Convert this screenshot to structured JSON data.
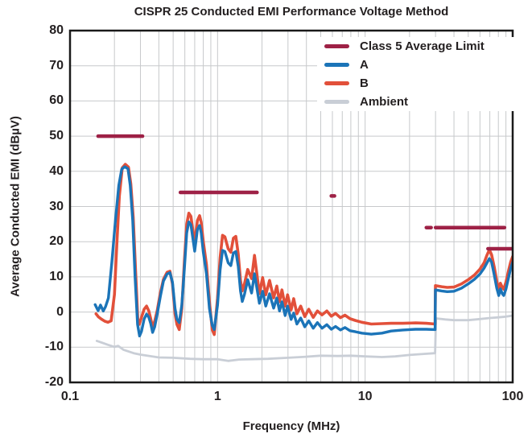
{
  "chart_data": {
    "type": "line",
    "title": "CISPR 25 Conducted EMI Performance Voltage Method",
    "xlabel": "Frequency (MHz)",
    "ylabel": "Average Conducted EMI (dBµV)",
    "x_scale": "log",
    "xlim": [
      0.1,
      100
    ],
    "ylim": [
      -20,
      80
    ],
    "x_ticks": {
      "values": [
        0.1,
        1,
        10,
        100
      ],
      "labels": [
        "0.1",
        "1",
        "10",
        "100"
      ]
    },
    "y_ticks": {
      "values": [
        80,
        70,
        60,
        50,
        40,
        30,
        20,
        10,
        0,
        -10,
        -20
      ],
      "labels": [
        "80",
        "70",
        "60",
        "50",
        "40",
        "30",
        "20",
        "10",
        "0",
        "-10",
        "-20"
      ]
    },
    "grid": {
      "on": true,
      "minor_log_x": true,
      "color": "#c7c9cb"
    },
    "frame_color": "#1a1a1a",
    "legend_position": "top-right-inside",
    "series": [
      {
        "name": "Class 5 Average Limit",
        "kind": "segments",
        "color": "#9e2146",
        "width": 4.5,
        "z": 4,
        "segments": [
          [
            0.155,
            0.31,
            50
          ],
          [
            0.56,
            1.85,
            34
          ],
          [
            5.9,
            6.2,
            33
          ],
          [
            26,
            28,
            24
          ],
          [
            30,
            88,
            24
          ],
          [
            68,
            100,
            18
          ]
        ]
      },
      {
        "name": "A",
        "kind": "line",
        "color": "#1b74b8",
        "width": 3.4,
        "z": 3,
        "points": [
          [
            0.148,
            2.1
          ],
          [
            0.155,
            0.4
          ],
          [
            0.161,
            2.0
          ],
          [
            0.168,
            0.3
          ],
          [
            0.174,
            1.5
          ],
          [
            0.182,
            4.0
          ],
          [
            0.192,
            14
          ],
          [
            0.203,
            26
          ],
          [
            0.214,
            36
          ],
          [
            0.224,
            40.6
          ],
          [
            0.235,
            41.3
          ],
          [
            0.247,
            40.7
          ],
          [
            0.256,
            36
          ],
          [
            0.266,
            26
          ],
          [
            0.276,
            10
          ],
          [
            0.287,
            -3.5
          ],
          [
            0.296,
            -6.8
          ],
          [
            0.305,
            -5.5
          ],
          [
            0.318,
            -2.0
          ],
          [
            0.33,
            -0.6
          ],
          [
            0.342,
            -1.5
          ],
          [
            0.352,
            -3.2
          ],
          [
            0.363,
            -5.8
          ],
          [
            0.375,
            -4.2
          ],
          [
            0.39,
            -0.5
          ],
          [
            0.41,
            4.5
          ],
          [
            0.43,
            8.8
          ],
          [
            0.455,
            10.8
          ],
          [
            0.475,
            11.2
          ],
          [
            0.495,
            8.5
          ],
          [
            0.515,
            1.0
          ],
          [
            0.53,
            -2.0
          ],
          [
            0.55,
            -3.0
          ],
          [
            0.572,
            2.0
          ],
          [
            0.595,
            12.0
          ],
          [
            0.618,
            22.5
          ],
          [
            0.638,
            25.6
          ],
          [
            0.66,
            24.8
          ],
          [
            0.7,
            17.3
          ],
          [
            0.73,
            23.5
          ],
          [
            0.755,
            24.6
          ],
          [
            0.775,
            22.5
          ],
          [
            0.8,
            17.0
          ],
          [
            0.84,
            10.9
          ],
          [
            0.88,
            1.0
          ],
          [
            0.92,
            -3.8
          ],
          [
            0.95,
            -5.0
          ],
          [
            1.0,
            2.0
          ],
          [
            1.04,
            12.0
          ],
          [
            1.08,
            17.5
          ],
          [
            1.12,
            17.2
          ],
          [
            1.18,
            14.0
          ],
          [
            1.23,
            13.2
          ],
          [
            1.28,
            16.8
          ],
          [
            1.33,
            17.2
          ],
          [
            1.38,
            13.0
          ],
          [
            1.43,
            6.0
          ],
          [
            1.47,
            3.0
          ],
          [
            1.52,
            5.0
          ],
          [
            1.6,
            9.2
          ],
          [
            1.7,
            5.4
          ],
          [
            1.78,
            10.9
          ],
          [
            1.92,
            2.5
          ],
          [
            2.02,
            5.9
          ],
          [
            2.12,
            1.7
          ],
          [
            2.25,
            5.2
          ],
          [
            2.4,
            1.1
          ],
          [
            2.52,
            4.0
          ],
          [
            2.63,
            0.3
          ],
          [
            2.73,
            2.9
          ],
          [
            2.87,
            -1.0
          ],
          [
            2.98,
            1.7
          ],
          [
            3.15,
            -2.1
          ],
          [
            3.28,
            -0.3
          ],
          [
            3.45,
            -3.4
          ],
          [
            3.66,
            -1.7
          ],
          [
            3.9,
            -4.2
          ],
          [
            4.15,
            -2.5
          ],
          [
            4.45,
            -4.6
          ],
          [
            4.75,
            -3.0
          ],
          [
            5.1,
            -4.6
          ],
          [
            5.5,
            -3.6
          ],
          [
            5.9,
            -4.9
          ],
          [
            6.3,
            -4.1
          ],
          [
            6.8,
            -5.1
          ],
          [
            7.3,
            -4.4
          ],
          [
            7.9,
            -5.3
          ],
          [
            8.6,
            -5.6
          ],
          [
            9.5,
            -6.0
          ],
          [
            11,
            -6.3
          ],
          [
            13,
            -6.0
          ],
          [
            15,
            -5.4
          ],
          [
            18,
            -5.1
          ],
          [
            22,
            -4.9
          ],
          [
            26,
            -4.9
          ],
          [
            29.8,
            -5.0
          ],
          [
            29.95,
            6.3
          ],
          [
            33,
            6.0
          ],
          [
            36,
            5.8
          ],
          [
            40,
            5.9
          ],
          [
            45,
            6.8
          ],
          [
            50,
            8.0
          ],
          [
            55,
            9.3
          ],
          [
            60,
            10.8
          ],
          [
            64,
            12.5
          ],
          [
            67,
            14.0
          ],
          [
            69.5,
            15.2
          ],
          [
            72,
            14.2
          ],
          [
            75,
            10.5
          ],
          [
            78,
            6.8
          ],
          [
            80.5,
            4.7
          ],
          [
            82.5,
            6.6
          ],
          [
            85,
            5.2
          ],
          [
            87,
            4.7
          ],
          [
            90,
            6.5
          ],
          [
            94,
            10.0
          ],
          [
            97,
            12.5
          ],
          [
            100,
            14.2
          ]
        ]
      },
      {
        "name": "B",
        "kind": "line",
        "color": "#e2503a",
        "width": 3.6,
        "z": 2,
        "points": [
          [
            0.15,
            -0.5
          ],
          [
            0.156,
            -1.4
          ],
          [
            0.163,
            -2.0
          ],
          [
            0.172,
            -2.6
          ],
          [
            0.181,
            -2.9
          ],
          [
            0.19,
            -2.5
          ],
          [
            0.2,
            5
          ],
          [
            0.208,
            20
          ],
          [
            0.216,
            33
          ],
          [
            0.226,
            41.0
          ],
          [
            0.237,
            42.0
          ],
          [
            0.249,
            41.2
          ],
          [
            0.258,
            36.5
          ],
          [
            0.268,
            27
          ],
          [
            0.278,
            12
          ],
          [
            0.288,
            -2.0
          ],
          [
            0.295,
            -3.5
          ],
          [
            0.305,
            -1.5
          ],
          [
            0.318,
            0.8
          ],
          [
            0.33,
            1.7
          ],
          [
            0.342,
            0.3
          ],
          [
            0.352,
            -1.8
          ],
          [
            0.363,
            -4.4
          ],
          [
            0.375,
            -2.6
          ],
          [
            0.39,
            0.5
          ],
          [
            0.41,
            5.5
          ],
          [
            0.43,
            9.3
          ],
          [
            0.455,
            11.3
          ],
          [
            0.475,
            11.6
          ],
          [
            0.495,
            8.0
          ],
          [
            0.515,
            -0.5
          ],
          [
            0.53,
            -3.5
          ],
          [
            0.55,
            -5.0
          ],
          [
            0.572,
            1.0
          ],
          [
            0.595,
            14.0
          ],
          [
            0.618,
            25.0
          ],
          [
            0.638,
            28.1
          ],
          [
            0.66,
            27.2
          ],
          [
            0.7,
            19.5
          ],
          [
            0.73,
            26.0
          ],
          [
            0.755,
            27.4
          ],
          [
            0.775,
            25.5
          ],
          [
            0.8,
            20.0
          ],
          [
            0.84,
            13.5
          ],
          [
            0.88,
            3.0
          ],
          [
            0.92,
            -5.0
          ],
          [
            0.95,
            -6.4
          ],
          [
            1.0,
            4.0
          ],
          [
            1.04,
            15.5
          ],
          [
            1.08,
            21.8
          ],
          [
            1.12,
            21.4
          ],
          [
            1.18,
            18.0
          ],
          [
            1.23,
            17.0
          ],
          [
            1.28,
            21.0
          ],
          [
            1.33,
            21.5
          ],
          [
            1.38,
            16.5
          ],
          [
            1.43,
            9.0
          ],
          [
            1.47,
            6.0
          ],
          [
            1.52,
            8.0
          ],
          [
            1.6,
            12.1
          ],
          [
            1.7,
            9.5
          ],
          [
            1.78,
            16.1
          ],
          [
            1.92,
            5.2
          ],
          [
            2.02,
            9.8
          ],
          [
            2.12,
            4.9
          ],
          [
            2.25,
            9.0
          ],
          [
            2.4,
            4.0
          ],
          [
            2.52,
            7.4
          ],
          [
            2.63,
            2.9
          ],
          [
            2.73,
            6.3
          ],
          [
            2.87,
            1.7
          ],
          [
            2.98,
            4.9
          ],
          [
            3.15,
            0.6
          ],
          [
            3.28,
            3.8
          ],
          [
            3.45,
            -0.5
          ],
          [
            3.66,
            1.7
          ],
          [
            3.9,
            -1.3
          ],
          [
            4.15,
            0.8
          ],
          [
            4.45,
            -1.5
          ],
          [
            4.75,
            0.3
          ],
          [
            5.1,
            -0.8
          ],
          [
            5.5,
            0.3
          ],
          [
            5.9,
            -1.2
          ],
          [
            6.3,
            -0.4
          ],
          [
            6.8,
            -1.6
          ],
          [
            7.3,
            -0.9
          ],
          [
            7.9,
            -1.9
          ],
          [
            8.6,
            -2.4
          ],
          [
            9.5,
            -2.9
          ],
          [
            11,
            -3.4
          ],
          [
            13,
            -3.3
          ],
          [
            15,
            -3.2
          ],
          [
            18,
            -3.2
          ],
          [
            22,
            -3.1
          ],
          [
            26,
            -3.2
          ],
          [
            29.8,
            -3.4
          ],
          [
            29.95,
            7.5
          ],
          [
            33,
            7.2
          ],
          [
            36,
            7.0
          ],
          [
            40,
            7.1
          ],
          [
            45,
            8.0
          ],
          [
            50,
            9.2
          ],
          [
            55,
            10.5
          ],
          [
            60,
            12.2
          ],
          [
            64,
            14.0
          ],
          [
            67,
            16.2
          ],
          [
            69.5,
            17.7
          ],
          [
            72,
            16.3
          ],
          [
            75,
            12.8
          ],
          [
            78,
            8.8
          ],
          [
            80.5,
            6.3
          ],
          [
            82.5,
            8.2
          ],
          [
            85,
            7.0
          ],
          [
            87,
            6.5
          ],
          [
            90,
            8.5
          ],
          [
            94,
            12.0
          ],
          [
            97,
            14.3
          ],
          [
            100,
            15.8
          ]
        ]
      },
      {
        "name": "Ambient",
        "kind": "line",
        "color": "#c9ced6",
        "width": 2.8,
        "z": 1,
        "points": [
          [
            0.152,
            -8.2
          ],
          [
            0.18,
            -9.3
          ],
          [
            0.2,
            -9.9
          ],
          [
            0.212,
            -9.6
          ],
          [
            0.23,
            -10.7
          ],
          [
            0.27,
            -11.7
          ],
          [
            0.3,
            -12.1
          ],
          [
            0.4,
            -12.9
          ],
          [
            0.5,
            -13.0
          ],
          [
            0.65,
            -13.3
          ],
          [
            0.8,
            -13.4
          ],
          [
            1.0,
            -13.4
          ],
          [
            1.18,
            -13.9
          ],
          [
            1.4,
            -13.5
          ],
          [
            1.7,
            -13.4
          ],
          [
            2.2,
            -13.3
          ],
          [
            3.0,
            -13.0
          ],
          [
            4.0,
            -12.7
          ],
          [
            5.0,
            -12.4
          ],
          [
            6.5,
            -12.5
          ],
          [
            8.0,
            -12.4
          ],
          [
            10,
            -12.6
          ],
          [
            13,
            -12.8
          ],
          [
            16,
            -12.6
          ],
          [
            20,
            -12.2
          ],
          [
            25,
            -11.9
          ],
          [
            29.8,
            -11.7
          ],
          [
            30.2,
            -1.8
          ],
          [
            35,
            -2.1
          ],
          [
            40,
            -2.3
          ],
          [
            50,
            -2.3
          ],
          [
            60,
            -2.0
          ],
          [
            70,
            -1.7
          ],
          [
            80,
            -1.5
          ],
          [
            90,
            -1.3
          ],
          [
            100,
            -1.0
          ]
        ]
      }
    ]
  },
  "legend": {
    "items": [
      {
        "label": "Class 5 Average Limit",
        "color": "#9e2146"
      },
      {
        "label": "A",
        "color": "#1b74b8"
      },
      {
        "label": "B",
        "color": "#e2503a"
      },
      {
        "label": "Ambient",
        "color": "#c9ced6"
      }
    ]
  }
}
